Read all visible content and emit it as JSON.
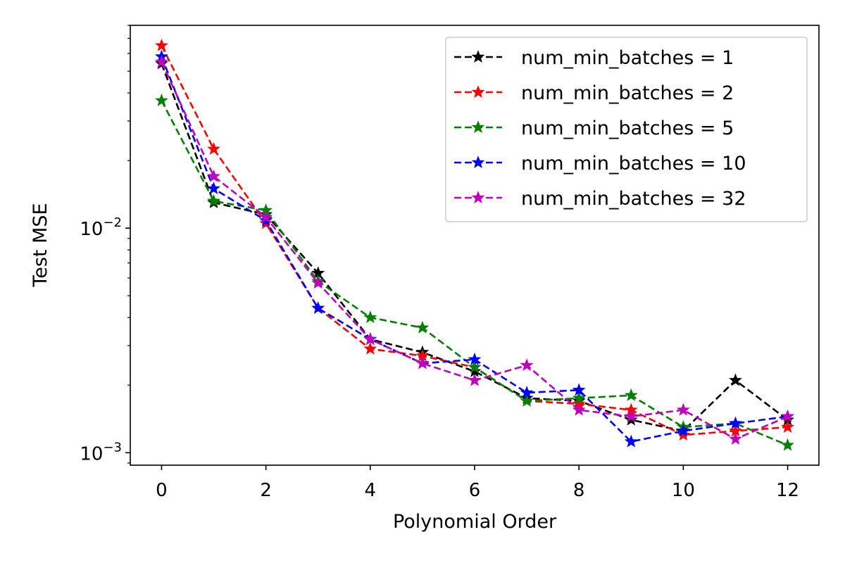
{
  "chart_data": {
    "type": "line",
    "xlabel": "Polynomial Order",
    "ylabel": "Test MSE",
    "yscale": "log",
    "xlim": [
      -0.6,
      12.6
    ],
    "ylim": [
      0.00088,
      0.08
    ],
    "x": [
      0,
      1,
      2,
      3,
      4,
      5,
      6,
      7,
      8,
      9,
      10,
      11,
      12
    ],
    "x_ticks": [
      "0",
      "2",
      "4",
      "6",
      "8",
      "10",
      "12"
    ],
    "y_ticks": [
      {
        "label_base": "10",
        "label_exp": "−2"
      },
      {
        "label_base": "10",
        "label_exp": "−3"
      }
    ],
    "grid": false,
    "legend_position": "top-right",
    "series": [
      {
        "name": "num_min_batches = 1",
        "color": "#000000",
        "values": [
          0.054,
          0.013,
          0.0115,
          0.0063,
          0.0032,
          0.0028,
          0.0023,
          0.00175,
          0.0017,
          0.0014,
          0.00125,
          0.0021,
          0.0014
        ]
      },
      {
        "name": "num_min_batches = 2",
        "color": "#ff0000",
        "values": [
          0.065,
          0.0225,
          0.0105,
          0.0044,
          0.0029,
          0.0027,
          0.0024,
          0.0017,
          0.00165,
          0.00155,
          0.0012,
          0.00125,
          0.0013
        ]
      },
      {
        "name": "num_min_batches = 5",
        "color": "#008000",
        "values": [
          0.037,
          0.0132,
          0.012,
          0.0058,
          0.004,
          0.0036,
          0.0024,
          0.0017,
          0.00175,
          0.0018,
          0.0013,
          0.00135,
          0.00108
        ]
      },
      {
        "name": "num_min_batches = 10",
        "color": "#0000ff",
        "values": [
          0.058,
          0.015,
          0.0108,
          0.0044,
          0.0032,
          0.0025,
          0.0026,
          0.00185,
          0.0019,
          0.00112,
          0.00125,
          0.00135,
          0.00145
        ]
      },
      {
        "name": "num_min_batches = 32",
        "color": "#bf00bf",
        "values": [
          0.055,
          0.017,
          0.0112,
          0.0057,
          0.0032,
          0.0025,
          0.0021,
          0.00245,
          0.00155,
          0.00145,
          0.00155,
          0.00115,
          0.00145
        ]
      }
    ]
  }
}
